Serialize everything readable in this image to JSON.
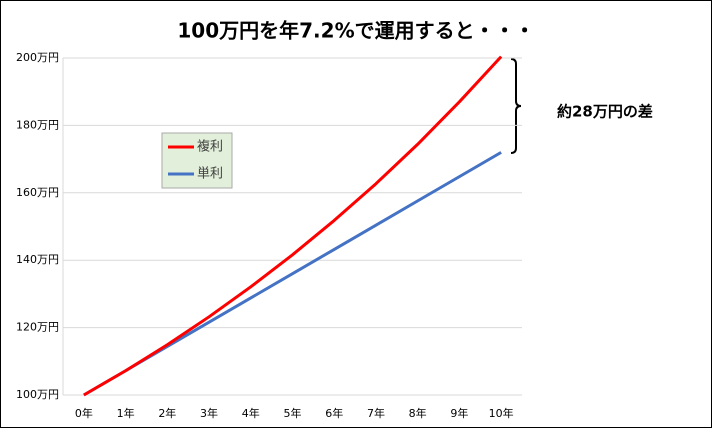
{
  "chart_data": {
    "type": "line",
    "title": "100万円を年7.2%で運用すると・・・",
    "annotation": "約28万円の差",
    "categories": [
      "0年",
      "1年",
      "2年",
      "3年",
      "4年",
      "5年",
      "6年",
      "7年",
      "8年",
      "9年",
      "10年"
    ],
    "series": [
      {
        "name": "複利",
        "color": "#ff0000",
        "values": [
          100,
          107.2,
          114.9,
          123.2,
          132.1,
          141.6,
          151.8,
          162.7,
          174.4,
          187.0,
          200.4
        ]
      },
      {
        "name": "単利",
        "color": "#4472c4",
        "values": [
          100,
          107.2,
          114.4,
          121.6,
          128.8,
          136,
          143.2,
          150.4,
          157.6,
          164.8,
          172
        ]
      }
    ],
    "ylim": [
      100,
      200
    ],
    "yticks": [
      {
        "value": 100,
        "label": "100万円"
      },
      {
        "value": 120,
        "label": "120万円"
      },
      {
        "value": 140,
        "label": "140万円"
      },
      {
        "value": 160,
        "label": "160万円"
      },
      {
        "value": 180,
        "label": "180万円"
      },
      {
        "value": 200,
        "label": "200万円"
      }
    ],
    "grid": true
  }
}
